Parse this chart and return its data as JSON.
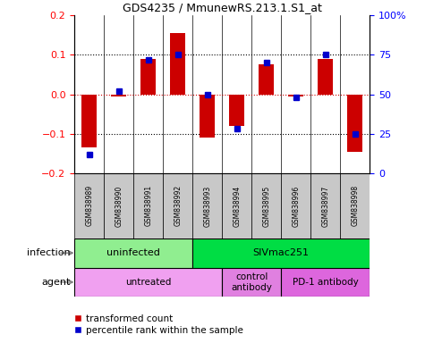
{
  "title": "GDS4235 / MmunewRS.213.1.S1_at",
  "samples": [
    "GSM838989",
    "GSM838990",
    "GSM838991",
    "GSM838992",
    "GSM838993",
    "GSM838994",
    "GSM838995",
    "GSM838996",
    "GSM838997",
    "GSM838998"
  ],
  "transformed_count": [
    -0.135,
    -0.005,
    0.09,
    0.155,
    -0.11,
    -0.08,
    0.075,
    -0.005,
    0.09,
    -0.145
  ],
  "percentile_rank": [
    12,
    52,
    72,
    75,
    50,
    28,
    70,
    48,
    75,
    25
  ],
  "infection_groups": [
    {
      "label": "uninfected",
      "start": 0,
      "end": 3,
      "color": "#90EE90"
    },
    {
      "label": "SIVmac251",
      "start": 4,
      "end": 9,
      "color": "#00DD44"
    }
  ],
  "agent_groups": [
    {
      "label": "untreated",
      "start": 0,
      "end": 4,
      "color": "#F0A0F0"
    },
    {
      "label": "control\nantibody",
      "start": 5,
      "end": 6,
      "color": "#E080E0"
    },
    {
      "label": "PD-1 antibody",
      "start": 7,
      "end": 9,
      "color": "#DD66DD"
    }
  ],
  "bar_color": "#CC0000",
  "dot_color": "#0000CC",
  "ylim": [
    -0.2,
    0.2
  ],
  "y2lim": [
    0,
    100
  ],
  "yticks": [
    -0.2,
    -0.1,
    0.0,
    0.1,
    0.2
  ],
  "y2ticks": [
    0,
    25,
    50,
    75,
    100
  ],
  "y2ticklabels": [
    "0",
    "25",
    "50",
    "75",
    "100%"
  ],
  "dotted_lines_black": [
    -0.1,
    0.1
  ],
  "dotted_line_red": 0.0,
  "legend_transformed": "transformed count",
  "legend_percentile": "percentile rank within the sample",
  "sample_bg": "#C8C8C8",
  "bar_width": 0.5
}
